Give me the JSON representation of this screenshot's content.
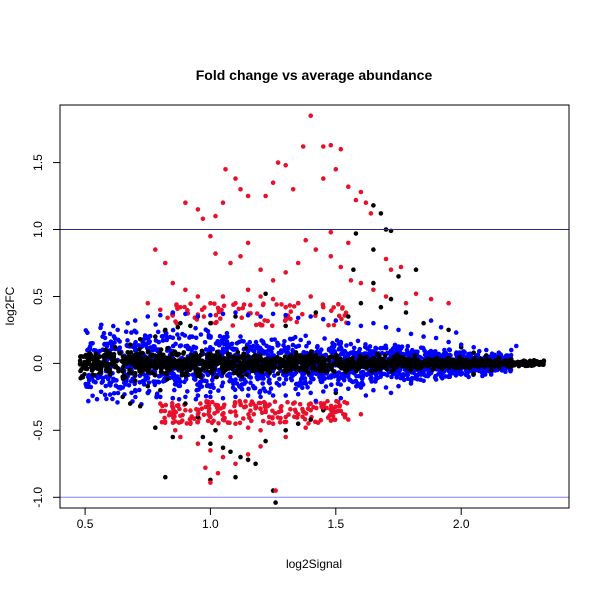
{
  "chart_data": {
    "type": "scatter",
    "title": "Fold change vs average abundance",
    "xlabel": "log2Signal",
    "ylabel": "log2FC",
    "xlim": [
      0.4,
      2.43
    ],
    "ylim": [
      -1.08,
      1.93
    ],
    "x_ticks": [
      0.5,
      1.0,
      1.5,
      2.0
    ],
    "x_tick_labels": [
      "0.5",
      "1.0",
      "1.5",
      "2.0"
    ],
    "y_ticks": [
      -1.0,
      -0.5,
      0.0,
      0.5,
      1.0,
      1.5
    ],
    "y_tick_labels": [
      "-1.0",
      "-0.5",
      "0.0",
      "0.5",
      "1.0",
      "1.5"
    ],
    "grid": false,
    "legend": "none",
    "reference_lines": [
      {
        "y": 1.0,
        "color": "#2a2a8a"
      },
      {
        "y": -1.0,
        "color": "#8080ff"
      }
    ],
    "series_colors": {
      "non_significant": "#000000",
      "significant_small_fc": "#0000ff",
      "significant_large_fc": "#e8102a"
    },
    "series": [
      {
        "color_key": "non_significant",
        "points": [
          [
            0.48,
            0.02
          ],
          [
            0.5,
            -0.02
          ],
          [
            0.52,
            0.05
          ],
          [
            0.55,
            -0.04
          ],
          [
            0.58,
            0.1
          ],
          [
            0.6,
            -0.08
          ],
          [
            0.62,
            0.12
          ],
          [
            0.65,
            -0.1
          ],
          [
            0.68,
            0.14
          ],
          [
            0.7,
            -0.13
          ],
          [
            0.72,
            0.18
          ],
          [
            0.75,
            -0.17
          ],
          [
            0.78,
            0.2
          ],
          [
            0.8,
            -0.2
          ],
          [
            0.82,
            0.25
          ],
          [
            0.85,
            -0.26
          ],
          [
            0.88,
            0.3
          ],
          [
            0.9,
            -0.3
          ],
          [
            0.92,
            0.28
          ],
          [
            0.95,
            -0.4
          ],
          [
            0.97,
            -0.55
          ],
          [
            1.0,
            -0.6
          ],
          [
            1.02,
            -0.5
          ],
          [
            1.05,
            -0.63
          ],
          [
            1.08,
            -0.66
          ],
          [
            1.12,
            -0.7
          ],
          [
            1.15,
            -0.72
          ],
          [
            1.18,
            -0.75
          ],
          [
            1.22,
            -0.58
          ],
          [
            1.3,
            -0.5
          ],
          [
            1.35,
            -0.45
          ],
          [
            1.4,
            -0.42
          ],
          [
            1.45,
            -0.35
          ],
          [
            0.82,
            -0.85
          ],
          [
            1.0,
            -0.87
          ],
          [
            1.1,
            -0.85
          ],
          [
            1.26,
            -1.04
          ],
          [
            1.25,
            -0.95
          ],
          [
            1.22,
            0.52
          ],
          [
            1.35,
            0.45
          ],
          [
            1.42,
            0.38
          ],
          [
            1.55,
            0.35
          ],
          [
            1.6,
            0.45
          ],
          [
            1.68,
            0.42
          ],
          [
            1.72,
            0.48
          ],
          [
            1.78,
            0.38
          ],
          [
            1.65,
            0.6
          ],
          [
            1.75,
            0.65
          ],
          [
            1.82,
            0.7
          ],
          [
            1.57,
            0.7
          ],
          [
            1.58,
            0.97
          ],
          [
            1.65,
            0.85
          ],
          [
            1.7,
            1.0
          ],
          [
            1.72,
            0.99
          ],
          [
            1.68,
            1.12
          ],
          [
            1.65,
            1.18
          ],
          [
            0.87,
            0.27
          ],
          [
            1.0,
            0.3
          ],
          [
            1.1,
            0.35
          ],
          [
            1.3,
            0.28
          ],
          [
            1.85,
            0.3
          ],
          [
            1.95,
            0.25
          ],
          [
            2.0,
            0.12
          ],
          [
            2.05,
            0.08
          ],
          [
            2.1,
            0.06
          ],
          [
            2.15,
            0.04
          ],
          [
            2.2,
            0.03
          ],
          [
            2.25,
            0.02
          ],
          [
            2.3,
            0.01
          ],
          [
            2.33,
            0.02
          ],
          [
            2.2,
            -0.02
          ],
          [
            2.12,
            -0.05
          ],
          [
            2.05,
            -0.08
          ],
          [
            1.95,
            -0.1
          ],
          [
            0.72,
            -0.32
          ],
          [
            0.68,
            -0.3
          ],
          [
            0.65,
            -0.25
          ],
          [
            0.78,
            -0.48
          ],
          [
            0.85,
            -0.55
          ],
          [
            1.5,
            -0.22
          ]
        ]
      },
      {
        "color_key": "significant_small_fc",
        "points": [
          [
            0.53,
            0.15
          ],
          [
            0.57,
            0.2
          ],
          [
            0.6,
            0.22
          ],
          [
            0.63,
            0.25
          ],
          [
            0.67,
            0.3
          ],
          [
            0.7,
            0.32
          ],
          [
            0.75,
            0.35
          ],
          [
            0.8,
            0.36
          ],
          [
            0.85,
            0.38
          ],
          [
            0.9,
            0.37
          ],
          [
            0.95,
            0.35
          ],
          [
            1.0,
            0.36
          ],
          [
            1.05,
            0.37
          ],
          [
            1.1,
            0.38
          ],
          [
            1.15,
            0.36
          ],
          [
            1.2,
            0.35
          ],
          [
            1.25,
            0.37
          ],
          [
            1.3,
            0.36
          ],
          [
            1.35,
            0.34
          ],
          [
            1.4,
            0.35
          ],
          [
            1.45,
            0.33
          ],
          [
            1.5,
            0.32
          ],
          [
            1.55,
            0.3
          ],
          [
            1.6,
            0.28
          ],
          [
            1.65,
            0.3
          ],
          [
            1.7,
            0.27
          ],
          [
            1.75,
            0.25
          ],
          [
            1.8,
            0.22
          ],
          [
            1.85,
            0.2
          ],
          [
            1.9,
            0.19
          ],
          [
            1.95,
            0.16
          ],
          [
            2.0,
            0.14
          ],
          [
            2.05,
            0.12
          ],
          [
            2.1,
            0.1
          ],
          [
            2.15,
            0.08
          ],
          [
            2.2,
            0.1
          ],
          [
            2.22,
            0.13
          ],
          [
            1.98,
            0.23
          ],
          [
            1.92,
            0.27
          ],
          [
            1.88,
            0.32
          ],
          [
            0.55,
            -0.1
          ],
          [
            0.6,
            -0.15
          ],
          [
            0.65,
            -0.18
          ],
          [
            0.7,
            -0.2
          ],
          [
            0.75,
            -0.22
          ],
          [
            0.8,
            -0.25
          ],
          [
            0.85,
            -0.26
          ],
          [
            0.9,
            -0.25
          ],
          [
            0.95,
            -0.24
          ],
          [
            1.0,
            -0.25
          ],
          [
            1.05,
            -0.26
          ],
          [
            1.1,
            -0.25
          ],
          [
            1.15,
            -0.24
          ],
          [
            1.2,
            -0.25
          ],
          [
            1.25,
            -0.24
          ],
          [
            1.3,
            -0.24
          ],
          [
            1.35,
            -0.23
          ],
          [
            1.4,
            -0.22
          ],
          [
            1.45,
            -0.21
          ],
          [
            1.5,
            -0.2
          ],
          [
            1.55,
            -0.19
          ],
          [
            1.6,
            -0.18
          ],
          [
            1.65,
            -0.2
          ],
          [
            1.7,
            -0.18
          ],
          [
            1.75,
            -0.17
          ],
          [
            1.8,
            -0.15
          ],
          [
            1.85,
            -0.13
          ],
          [
            1.9,
            -0.12
          ],
          [
            1.95,
            -0.1
          ],
          [
            2.0,
            -0.08
          ],
          [
            1.72,
            -0.22
          ],
          [
            1.62,
            -0.24
          ],
          [
            1.52,
            -0.26
          ],
          [
            1.42,
            -0.28
          ],
          [
            0.92,
            0.2
          ],
          [
            1.12,
            0.2
          ],
          [
            1.32,
            0.18
          ],
          [
            1.52,
            0.15
          ],
          [
            0.7,
            0.1
          ],
          [
            1.8,
            0.08
          ]
        ]
      },
      {
        "color_key": "significant_large_fc",
        "points": [
          [
            1.4,
            1.85
          ],
          [
            1.45,
            1.62
          ],
          [
            1.48,
            1.63
          ],
          [
            1.52,
            1.6
          ],
          [
            1.37,
            1.62
          ],
          [
            1.45,
            1.38
          ],
          [
            1.5,
            1.45
          ],
          [
            1.55,
            1.32
          ],
          [
            1.58,
            1.22
          ],
          [
            1.6,
            1.28
          ],
          [
            1.62,
            1.2
          ],
          [
            1.64,
            1.12
          ],
          [
            1.3,
            1.48
          ],
          [
            1.27,
            1.5
          ],
          [
            1.33,
            1.3
          ],
          [
            1.25,
            1.35
          ],
          [
            1.22,
            1.25
          ],
          [
            1.06,
            1.45
          ],
          [
            1.1,
            1.38
          ],
          [
            1.12,
            1.3
          ],
          [
            1.15,
            1.25
          ],
          [
            1.05,
            1.2
          ],
          [
            1.02,
            1.1
          ],
          [
            0.9,
            1.2
          ],
          [
            0.95,
            1.15
          ],
          [
            0.97,
            1.08
          ],
          [
            1.0,
            0.95
          ],
          [
            1.02,
            0.82
          ],
          [
            1.08,
            0.75
          ],
          [
            1.12,
            0.8
          ],
          [
            1.15,
            0.9
          ],
          [
            1.2,
            0.7
          ],
          [
            1.25,
            0.62
          ],
          [
            1.3,
            0.68
          ],
          [
            1.35,
            0.75
          ],
          [
            1.38,
            0.92
          ],
          [
            1.42,
            0.85
          ],
          [
            1.48,
            0.8
          ],
          [
            1.52,
            0.72
          ],
          [
            1.56,
            0.62
          ],
          [
            1.48,
            0.98
          ],
          [
            1.55,
            0.9
          ],
          [
            1.6,
            0.6
          ],
          [
            1.65,
            0.55
          ],
          [
            1.7,
            0.5
          ],
          [
            1.78,
            0.45
          ],
          [
            1.82,
            0.52
          ],
          [
            1.88,
            0.48
          ],
          [
            1.95,
            0.45
          ],
          [
            1.7,
            0.78
          ],
          [
            1.72,
            0.7
          ],
          [
            1.76,
            0.72
          ],
          [
            0.78,
            0.85
          ],
          [
            0.82,
            0.75
          ],
          [
            0.85,
            0.6
          ],
          [
            0.9,
            0.55
          ],
          [
            0.95,
            0.5
          ],
          [
            1.0,
            0.45
          ],
          [
            1.05,
            0.5
          ],
          [
            1.1,
            0.45
          ],
          [
            1.15,
            0.55
          ],
          [
            1.2,
            0.5
          ],
          [
            1.25,
            0.48
          ],
          [
            1.3,
            0.42
          ],
          [
            1.35,
            0.45
          ],
          [
            1.4,
            0.5
          ],
          [
            1.45,
            0.42
          ],
          [
            0.75,
            0.45
          ],
          [
            0.8,
            0.4
          ],
          [
            0.88,
            0.42
          ],
          [
            0.8,
            -0.3
          ],
          [
            0.85,
            -0.33
          ],
          [
            0.9,
            -0.35
          ],
          [
            0.95,
            -0.38
          ],
          [
            1.0,
            -0.4
          ],
          [
            1.05,
            -0.42
          ],
          [
            1.1,
            -0.45
          ],
          [
            1.15,
            -0.48
          ],
          [
            1.2,
            -0.5
          ],
          [
            1.25,
            -0.45
          ],
          [
            1.3,
            -0.4
          ],
          [
            1.35,
            -0.38
          ],
          [
            1.4,
            -0.35
          ],
          [
            1.45,
            -0.33
          ],
          [
            0.88,
            -0.55
          ],
          [
            0.95,
            -0.6
          ],
          [
            1.0,
            -0.65
          ],
          [
            1.05,
            -0.7
          ],
          [
            1.1,
            -0.75
          ],
          [
            1.15,
            -0.68
          ],
          [
            1.2,
            -0.62
          ],
          [
            0.98,
            -0.78
          ],
          [
            1.0,
            -0.89
          ],
          [
            1.03,
            -0.82
          ],
          [
            1.26,
            -0.95
          ],
          [
            1.3,
            -0.55
          ],
          [
            1.38,
            -0.48
          ],
          [
            1.55,
            -0.42
          ],
          [
            1.6,
            -0.38
          ],
          [
            0.92,
            -0.45
          ],
          [
            0.86,
            -0.5
          ],
          [
            1.08,
            -0.55
          ],
          [
            1.22,
            -0.35
          ],
          [
            1.18,
            -0.32
          ],
          [
            1.12,
            -0.3
          ],
          [
            1.02,
            -0.31
          ],
          [
            0.96,
            -0.3
          ],
          [
            1.28,
            -0.33
          ],
          [
            1.33,
            -0.3
          ],
          [
            1.4,
            -0.3
          ]
        ]
      }
    ],
    "dense_band": {
      "description_free": true,
      "black_core": {
        "x_range": [
          0.48,
          2.33
        ],
        "half_width_start": 0.12,
        "half_width_end": 0.02,
        "count": 1400
      },
      "blue_cloud": {
        "x_range": [
          0.5,
          2.2
        ],
        "half_width_start": 0.36,
        "half_width_end": 0.08,
        "count": 1800
      },
      "red_fringe": {
        "x_range": [
          0.8,
          1.55
        ],
        "inner": 0.28,
        "outer": 0.45,
        "count": 260
      }
    }
  }
}
